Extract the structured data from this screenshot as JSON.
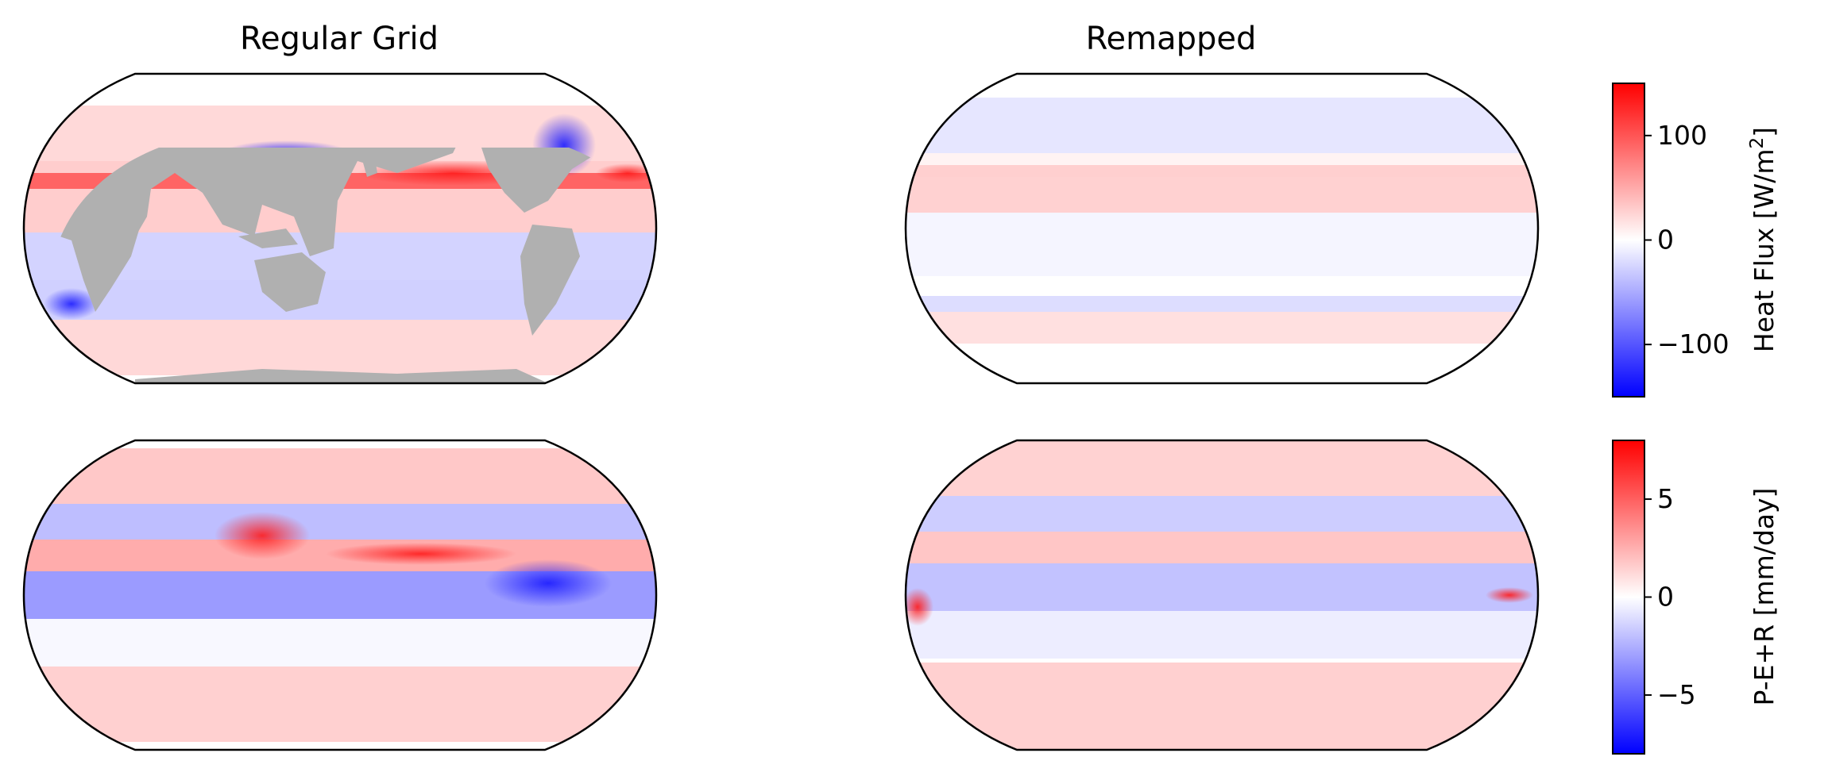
{
  "figure": {
    "panels": [
      {
        "id": "heat-regular",
        "title": "Regular Grid",
        "variable": "heat",
        "style": "regular"
      },
      {
        "id": "heat-remapped",
        "title": "Remapped",
        "variable": "heat",
        "style": "remapped"
      },
      {
        "id": "pe-regular",
        "title": "",
        "variable": "pe",
        "style": "regular"
      },
      {
        "id": "pe-remapped",
        "title": "",
        "variable": "pe",
        "style": "remapped"
      }
    ],
    "land_color": "#b0b0b0",
    "colormap": [
      "#0000ff",
      "#ffffff",
      "#ff0000"
    ]
  },
  "chart_data": [
    {
      "type": "heatmap",
      "projection": "Robinson",
      "variable": "Heat Flux",
      "panels": [
        "Regular Grid",
        "Remapped"
      ],
      "colorbar": {
        "label": "Heat Flux [W/m",
        "label_sup": "2",
        "label_end": "]",
        "range": [
          -150,
          150
        ],
        "ticks": [
          100,
          0,
          -100
        ],
        "tick_labels": [
          "100",
          "0",
          "−100"
        ],
        "colors": [
          "#0000ff",
          "#ffffff",
          "#ff0000"
        ]
      }
    },
    {
      "type": "heatmap",
      "projection": "Robinson",
      "variable": "P-E+R",
      "panels": [
        "Regular Grid",
        "Remapped"
      ],
      "colorbar": {
        "label": "P-E+R [mm/day]",
        "range": [
          -8,
          8
        ],
        "ticks": [
          5,
          0,
          -5
        ],
        "tick_labels": [
          "5",
          "0",
          "−5"
        ],
        "colors": [
          "#0000ff",
          "#ffffff",
          "#ff0000"
        ]
      }
    }
  ]
}
